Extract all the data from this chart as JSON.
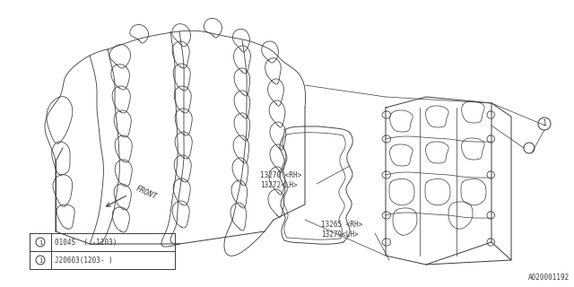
{
  "bg_color": "#ffffff",
  "line_color": "#3a3a3a",
  "title_text": "A020001192",
  "label1a": "13270 <RH>",
  "label1b": "13272<LH>",
  "label2a": "13265 <RH>",
  "label2b": "13279<LH>",
  "front_label": "FRONT",
  "legend_line1": "0104S  ( -1203)",
  "legend_line2": "J20603(1203- )",
  "circle_label": "1",
  "figsize": [
    6.4,
    3.2
  ],
  "dpi": 100
}
